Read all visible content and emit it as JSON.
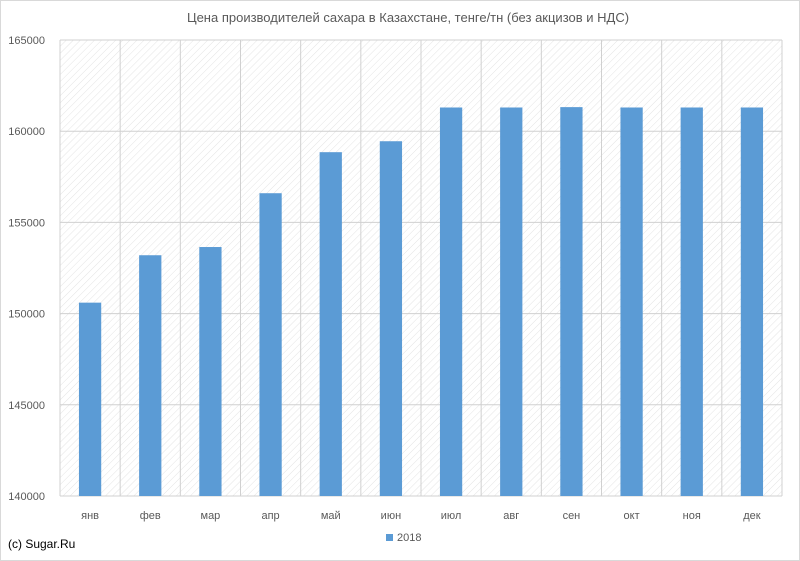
{
  "chart_data": {
    "type": "bar",
    "title": "Цена производителей  сахара в Казахстане, тенге/тн (без акцизов и НДС)",
    "categories": [
      "янв",
      "фев",
      "мар",
      "апр",
      "май",
      "июн",
      "июл",
      "авг",
      "сен",
      "окт",
      "ноя",
      "дек"
    ],
    "series": [
      {
        "name": "2018",
        "color": "#5b9bd5",
        "values": [
          150600,
          153200,
          153650,
          156600,
          158850,
          159450,
          161300,
          161300,
          161320,
          161300,
          161300,
          161300
        ]
      }
    ],
    "ylim": [
      140000,
      165000
    ],
    "yticks": [
      140000,
      145000,
      150000,
      155000,
      160000,
      165000
    ],
    "grid": true,
    "legend_position": "bottom-center"
  },
  "footer": {
    "copyright": "(c) Sugar.Ru"
  }
}
